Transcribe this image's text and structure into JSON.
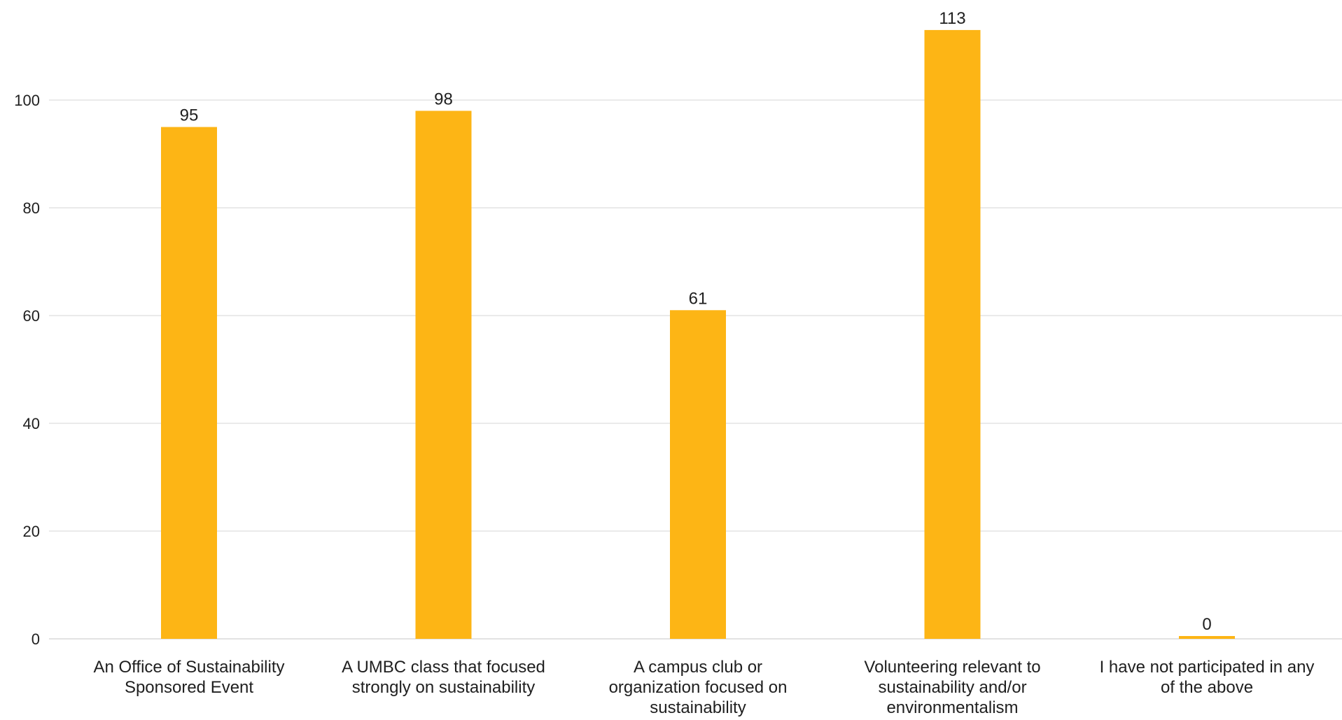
{
  "chart_data": {
    "type": "bar",
    "title": "",
    "xlabel": "",
    "ylabel": "",
    "categories": [
      [
        "An Office of Sustainability",
        "Sponsored Event"
      ],
      [
        "A UMBC class that focused",
        "strongly on sustainability"
      ],
      [
        "A campus club or",
        "organization focused on",
        "sustainability"
      ],
      [
        "Volunteering relevant to",
        "sustainability and/or",
        "environmentalism"
      ],
      [
        "I have not participated in any",
        "of the above"
      ]
    ],
    "values": [
      95,
      98,
      61,
      113,
      0
    ],
    "data_labels": [
      "95",
      "98",
      "61",
      "113",
      "0"
    ],
    "yticks": [
      0,
      20,
      40,
      60,
      80,
      100
    ],
    "ytick_labels": [
      "0",
      "20",
      "40",
      "60",
      "80",
      "100"
    ],
    "ylim": [
      0,
      113
    ],
    "grid": true,
    "bar_color": "#FDB515"
  }
}
